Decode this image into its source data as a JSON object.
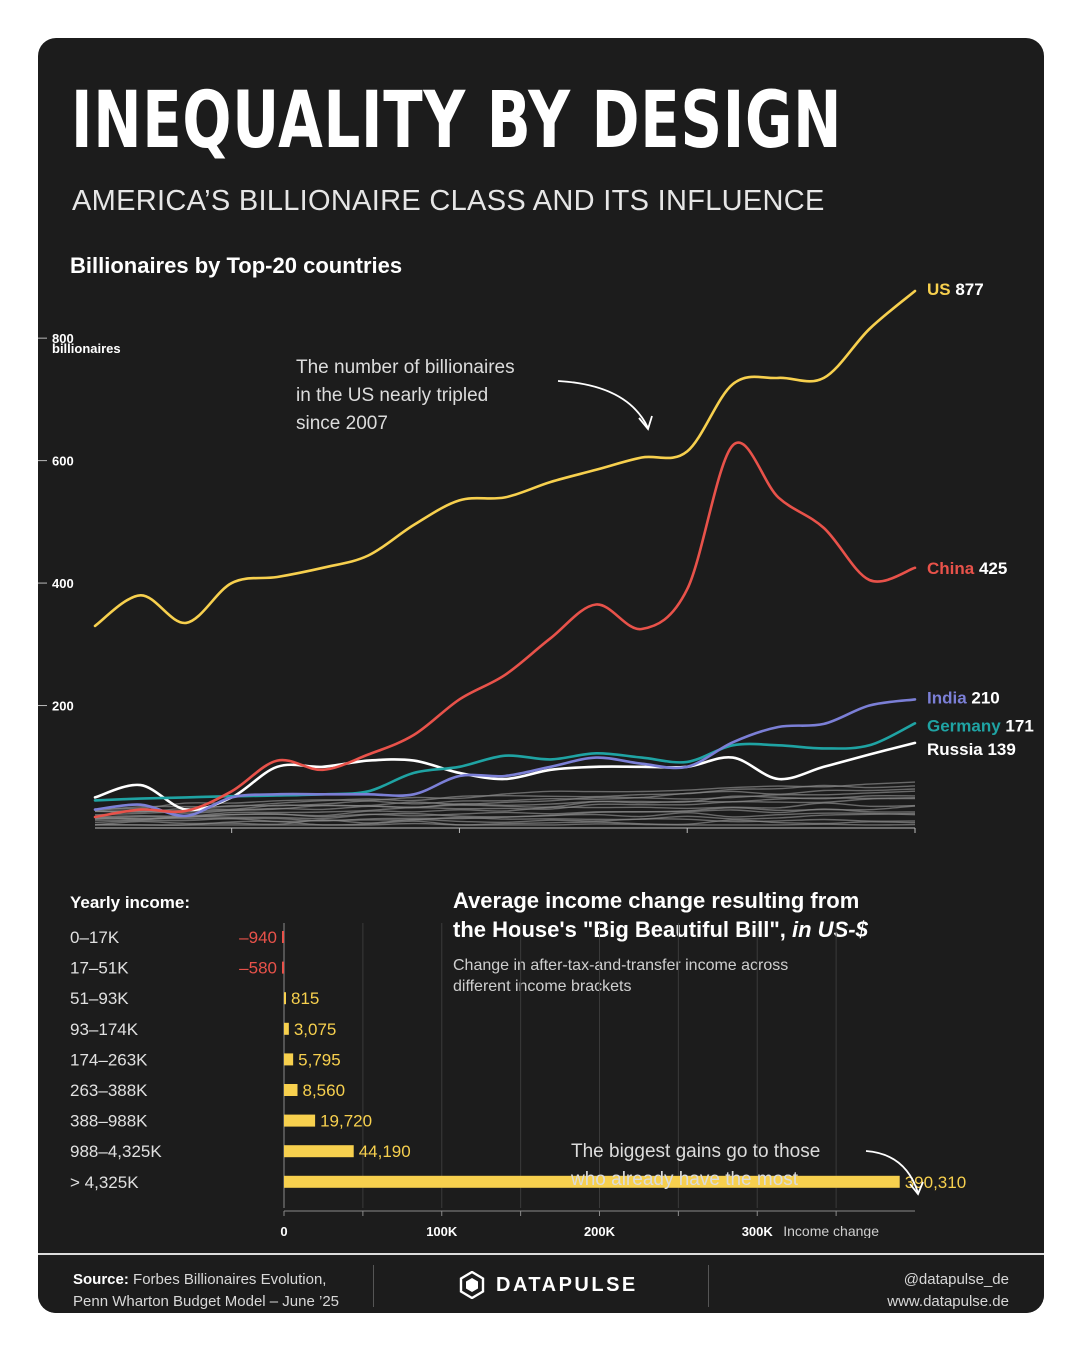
{
  "header": {
    "title": "INEQUALITY BY DESIGN",
    "subtitle": "AMERICA’S BILLIONAIRE CLASS AND ITS INFLUENCE"
  },
  "line_chart_text": {
    "heading": "Billionaires by Top-20 countries",
    "y_unit_label": "billionaires",
    "annotation": [
      "The number of billionaires",
      "in the US nearly tripled",
      "since 2007"
    ]
  },
  "bar_chart_text": {
    "title_line1": "Average income change resulting from",
    "title_line2_plain": "the House's \"Big Beautiful Bill\", ",
    "title_line2_italic": "in US-$",
    "subtitle_lines": [
      "Change in after-tax-and-transfer income across",
      "different income brackets"
    ],
    "row_header": "Yearly income:",
    "x_axis_title": "Income change",
    "annotation": [
      "The biggest gains go to those",
      "who already have the most"
    ]
  },
  "colors": {
    "background": "#1c1c1c",
    "us": "#f7d04e",
    "china": "#e8524a",
    "india": "#7b7fd6",
    "germany": "#1fa3a3",
    "russia": "#ffffff",
    "others": "#8a8a8a",
    "positive_bar": "#f7d04e",
    "negative_value": "#e8524a"
  },
  "chart_data": [
    {
      "type": "line",
      "title": "Billionaires by Top-20 countries",
      "ylabel": "billionaires",
      "xlim": [
        2007,
        2025
      ],
      "ylim": [
        0,
        877
      ],
      "xticks": [
        "2010",
        "2015",
        "2020",
        "2025"
      ],
      "yticks": [
        "200",
        "400",
        "600",
        "800"
      ],
      "x": [
        2007,
        2008,
        2009,
        2010,
        2011,
        2012,
        2013,
        2014,
        2015,
        2016,
        2017,
        2018,
        2019,
        2020,
        2021,
        2022,
        2023,
        2024,
        2025
      ],
      "series": [
        {
          "name": "US",
          "end_value": "877",
          "color_key": "us",
          "values": [
            330,
            380,
            335,
            400,
            410,
            425,
            445,
            495,
            535,
            540,
            565,
            585,
            605,
            615,
            725,
            735,
            735,
            815,
            877
          ]
        },
        {
          "name": "China",
          "end_value": "425",
          "color_key": "china",
          "values": [
            18,
            30,
            28,
            60,
            110,
            95,
            120,
            152,
            210,
            250,
            310,
            365,
            325,
            390,
            625,
            540,
            490,
            405,
            425
          ]
        },
        {
          "name": "India",
          "end_value": "210",
          "color_key": "india",
          "values": [
            30,
            38,
            20,
            50,
            55,
            55,
            55,
            55,
            85,
            85,
            100,
            115,
            105,
            100,
            140,
            165,
            170,
            200,
            210
          ]
        },
        {
          "name": "Germany",
          "end_value": "171",
          "color_key": "germany",
          "values": [
            45,
            48,
            50,
            52,
            53,
            55,
            60,
            90,
            100,
            118,
            112,
            122,
            115,
            108,
            135,
            135,
            130,
            135,
            171
          ]
        },
        {
          "name": "Russia",
          "end_value": "139",
          "color_key": "russia",
          "values": [
            50,
            70,
            30,
            50,
            100,
            100,
            110,
            110,
            90,
            80,
            95,
            100,
            100,
            100,
            115,
            80,
            100,
            120,
            139
          ]
        }
      ],
      "other_countries_range": [
        5,
        75
      ]
    },
    {
      "type": "bar",
      "title": "Average income change resulting from the House's \"Big Beautiful Bill\", in US-$",
      "xlabel": "Income change",
      "xlim": [
        0,
        400000
      ],
      "xticks": [
        "0",
        "100K",
        "200K",
        "300K"
      ],
      "categories": [
        "0–17K",
        "17–51K",
        "51–93K",
        "93–174K",
        "174–263K",
        "263–388K",
        "388–988K",
        "988–4,325K",
        "> 4,325K"
      ],
      "values": [
        -940,
        -580,
        815,
        3075,
        5795,
        8560,
        19720,
        44190,
        390310
      ],
      "value_labels": [
        "–940",
        "–580",
        "815",
        "3,075",
        "5,795",
        "8,560",
        "19,720",
        "44,190",
        "390,310"
      ]
    }
  ],
  "footer": {
    "source_label": "Source:",
    "source_line1": "Forbes Billionaires Evolution,",
    "source_line2": "Penn Wharton Budget Model – June ’25",
    "brand": "DATAPULSE",
    "handle": "@datapulse_de",
    "website": "www.datapulse.de"
  }
}
